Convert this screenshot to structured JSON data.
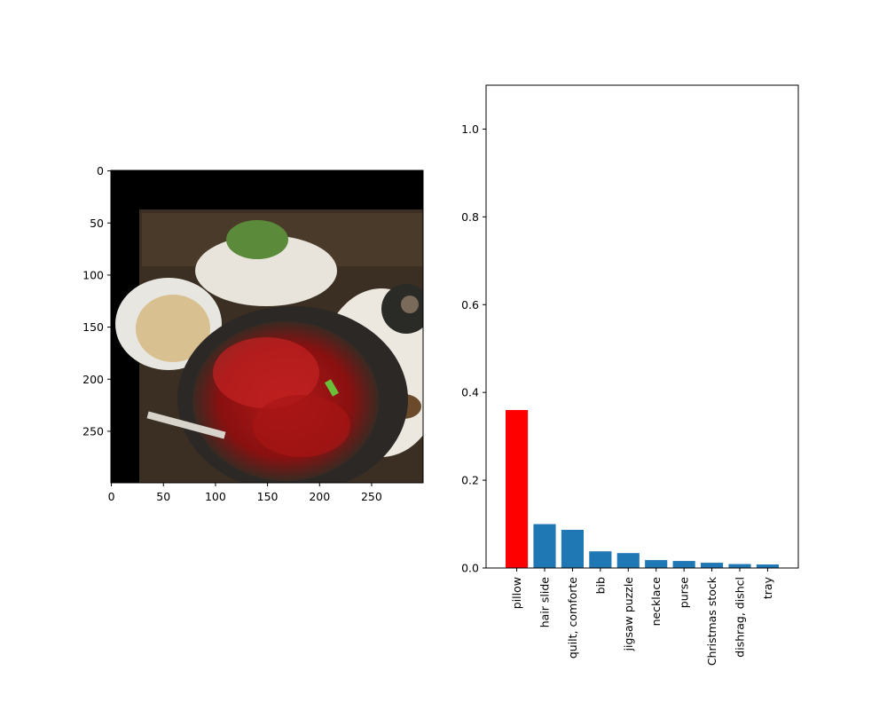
{
  "chart_data": [
    {
      "type": "image",
      "description_free": true,
      "x_ticks": [
        0,
        50,
        100,
        150,
        200,
        250
      ],
      "y_ticks": [
        0,
        50,
        100,
        150,
        200,
        250
      ],
      "xlim": [
        0,
        299
      ],
      "ylim": [
        299,
        0
      ]
    },
    {
      "type": "bar",
      "categories": [
        "pillow",
        "hair slide",
        "quilt, comforte",
        "bib",
        "jigsaw puzzle",
        "necklace",
        "purse",
        "Christmas stock",
        "dishrag, dishcl",
        "tray"
      ],
      "values": [
        0.36,
        0.1,
        0.087,
        0.038,
        0.034,
        0.018,
        0.016,
        0.012,
        0.009,
        0.008
      ],
      "ylim": [
        0,
        1.1
      ],
      "y_ticks": [
        0.0,
        0.2,
        0.4,
        0.6,
        0.8,
        1.0
      ],
      "highlight_index": 0,
      "colors": {
        "default": "#1f77b4",
        "highlight": "#ff0000"
      }
    }
  ]
}
